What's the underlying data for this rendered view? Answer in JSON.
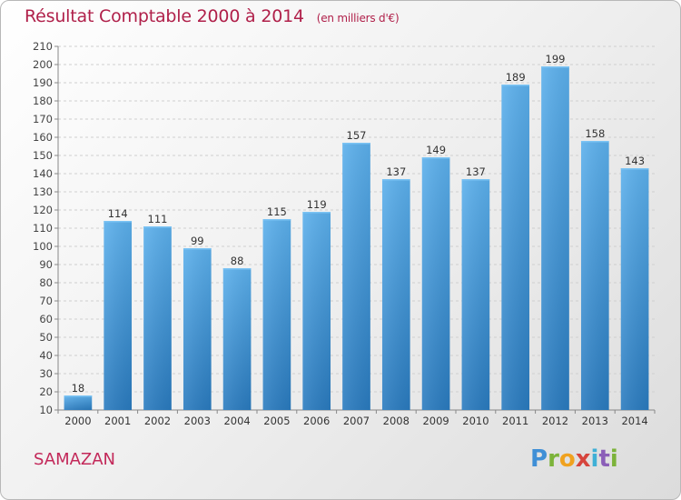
{
  "chart_title": "Résultat Comptable 2000 à 2014",
  "chart_subtitle": "(en milliers d'€)",
  "commune": "SAMAZAN",
  "brand": {
    "letters": [
      "P",
      "r",
      "o",
      "x",
      "i",
      "t",
      "i"
    ],
    "text": "Proxiti"
  },
  "colors": {
    "title": "#b0204a",
    "bar_light": "#5aaeea",
    "bar_dark": "#2a7bbf",
    "grid": "#d0d0d0"
  },
  "chart_data": {
    "type": "bar",
    "categories": [
      "2000",
      "2001",
      "2002",
      "2003",
      "2004",
      "2005",
      "2006",
      "2007",
      "2008",
      "2009",
      "2010",
      "2011",
      "2012",
      "2013",
      "2014"
    ],
    "values": [
      18,
      114,
      111,
      99,
      88,
      115,
      119,
      157,
      137,
      149,
      137,
      189,
      199,
      158,
      143
    ],
    "value_labels": [
      "18",
      "114",
      "111",
      "99",
      "88",
      "115",
      "119",
      "157",
      "137",
      "149",
      "137",
      "189",
      "199",
      "158",
      "143"
    ],
    "ylim": [
      10,
      210
    ],
    "yticks": [
      "10",
      "20",
      "30",
      "40",
      "50",
      "60",
      "70",
      "80",
      "90",
      "100",
      "110",
      "120",
      "130",
      "140",
      "150",
      "160",
      "170",
      "180",
      "190",
      "200",
      "210"
    ],
    "grid": true,
    "legend": "none"
  }
}
